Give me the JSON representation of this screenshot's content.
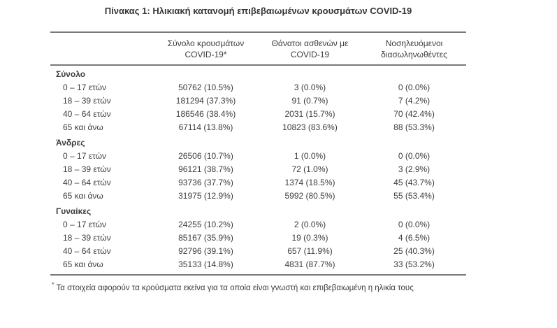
{
  "title": "Πίνακας 1: Ηλικιακή κατανομή επιβεβαιωμένων κρουσμάτων COVID-19",
  "columns": [
    {
      "line1": "Σύνολο κρουσμάτων",
      "line2": "COVID-19*"
    },
    {
      "line1": "Θάνατοι ασθενών με",
      "line2": "COVID-19"
    },
    {
      "line1": "Νοσηλευόμενοι",
      "line2": "διασωληνωθέντες"
    }
  ],
  "sections": [
    {
      "label": "Σύνολο",
      "rows": [
        {
          "age_group": "0 – 17 ετών",
          "total_cases": "50762 (10.5%)",
          "deaths": "3 (0.0%)",
          "intubated": "0 (0.0%)"
        },
        {
          "age_group": "18 – 39 ετών",
          "total_cases": "181294 (37.3%)",
          "deaths": "91 (0.7%)",
          "intubated": "7 (4.2%)"
        },
        {
          "age_group": "40 – 64 ετών",
          "total_cases": "186546 (38.4%)",
          "deaths": "2031 (15.7%)",
          "intubated": "70 (42.4%)"
        },
        {
          "age_group": "65 και άνω",
          "total_cases": "67114 (13.8%)",
          "deaths": "10823 (83.6%)",
          "intubated": "88 (53.3%)"
        }
      ]
    },
    {
      "label": "Άνδρες",
      "rows": [
        {
          "age_group": "0 – 17 ετών",
          "total_cases": "26506 (10.7%)",
          "deaths": "1 (0.0%)",
          "intubated": "0 (0.0%)"
        },
        {
          "age_group": "18 – 39 ετών",
          "total_cases": "96121 (38.7%)",
          "deaths": "72 (1.0%)",
          "intubated": "3 (2.9%)"
        },
        {
          "age_group": "40 – 64 ετών",
          "total_cases": "93736 (37.7%)",
          "deaths": "1374 (18.5%)",
          "intubated": "45 (43.7%)"
        },
        {
          "age_group": "65 και άνω",
          "total_cases": "31975 (12.9%)",
          "deaths": "5992 (80.5%)",
          "intubated": "55 (53.4%)"
        }
      ]
    },
    {
      "label": "Γυναίκες",
      "rows": [
        {
          "age_group": "0 – 17 ετών",
          "total_cases": "24255 (10.2%)",
          "deaths": "2 (0.0%)",
          "intubated": "0 (0.0%)"
        },
        {
          "age_group": "18 – 39 ετών",
          "total_cases": "85167 (35.9%)",
          "deaths": "19 (0.3%)",
          "intubated": "4 (6.5%)"
        },
        {
          "age_group": "40 – 64 ετών",
          "total_cases": "92796 (39.1%)",
          "deaths": "657 (11.9%)",
          "intubated": "25 (40.3%)"
        },
        {
          "age_group": "65 και άνω",
          "total_cases": "35133 (14.8%)",
          "deaths": "4831 (87.7%)",
          "intubated": "33 (53.2%)"
        }
      ]
    }
  ],
  "footnote": {
    "marker": "*",
    "text": "Τα στοιχεία αφορούν τα κρούσματα εκείνα για τα οποία είναι γνωστή και επιβεβαιωμένη η ηλικία τους"
  },
  "colors": {
    "background": "#ffffff",
    "text": "#3a3d40",
    "rule": "#7a7a7a"
  }
}
